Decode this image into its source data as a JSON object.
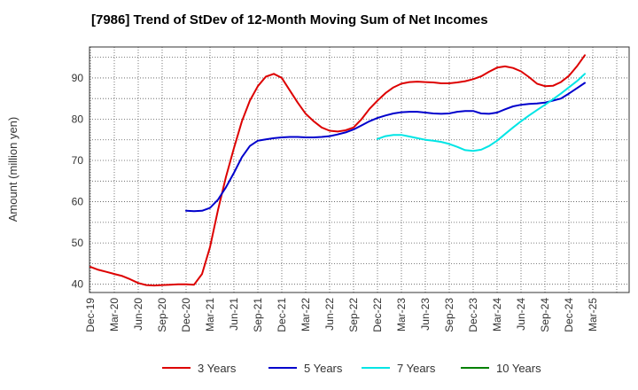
{
  "chart_data": {
    "type": "line",
    "title": "[7986]  Trend of StDev of 12-Month Moving Sum of Net Incomes",
    "xlabel": "",
    "ylabel": "Amount (million yen)",
    "ylim": [
      38,
      97.5
    ],
    "yticks": [
      40,
      50,
      60,
      70,
      80,
      90
    ],
    "grid": true,
    "legend_position": "bottom",
    "x_tick_labels": [
      "Dec-19",
      "Mar-20",
      "Jun-20",
      "Sep-20",
      "Dec-20",
      "Mar-21",
      "Jun-21",
      "Sep-21",
      "Dec-21",
      "Mar-22",
      "Jun-22",
      "Sep-22",
      "Dec-22",
      "Mar-23",
      "Jun-23",
      "Sep-23",
      "Dec-23",
      "Mar-24",
      "Jun-24",
      "Sep-24",
      "Dec-24",
      "Mar-25"
    ],
    "series": [
      {
        "name": "3 Years",
        "color": "#dd0000",
        "start_month": 0,
        "values": [
          44.2,
          43.5,
          43.0,
          42.5,
          42.0,
          41.2,
          40.3,
          39.8,
          39.7,
          39.8,
          39.9,
          40.0,
          40.0,
          39.9,
          42.5,
          49.0,
          58.0,
          66.0,
          73.0,
          79.5,
          84.5,
          88.0,
          90.3,
          91.0,
          90.0,
          87.0,
          84.0,
          81.3,
          79.5,
          78.0,
          77.2,
          77.0,
          77.3,
          78.0,
          80.0,
          82.5,
          84.5,
          86.3,
          87.7,
          88.6,
          89.0,
          89.1,
          89.0,
          88.9,
          88.7,
          88.7,
          88.9,
          89.2,
          89.7,
          90.4,
          91.5,
          92.5,
          92.8,
          92.4,
          91.6,
          90.2,
          88.6,
          88.0,
          88.1,
          89.0,
          90.5,
          92.8,
          95.5
        ]
      },
      {
        "name": "5 Years",
        "color": "#0000cc",
        "start_month": 12,
        "values": [
          57.8,
          57.7,
          57.8,
          58.5,
          60.5,
          63.5,
          67.0,
          70.8,
          73.5,
          74.8,
          75.1,
          75.4,
          75.6,
          75.7,
          75.7,
          75.6,
          75.6,
          75.7,
          75.9,
          76.3,
          76.8,
          77.5,
          78.5,
          79.5,
          80.3,
          80.9,
          81.4,
          81.7,
          81.8,
          81.8,
          81.6,
          81.4,
          81.3,
          81.4,
          81.8,
          82.0,
          82.0,
          81.4,
          81.3,
          81.6,
          82.4,
          83.1,
          83.5,
          83.7,
          83.8,
          84.0,
          84.5,
          85.0,
          86.2,
          87.5,
          88.8
        ]
      },
      {
        "name": "7 Years",
        "color": "#00e5e5",
        "start_month": 36,
        "values": [
          75.2,
          75.9,
          76.2,
          76.2,
          75.8,
          75.4,
          75.0,
          74.8,
          74.5,
          74.0,
          73.3,
          72.5,
          72.3,
          72.6,
          73.5,
          74.8,
          76.4,
          78.0,
          79.5,
          80.9,
          82.2,
          83.5,
          84.8,
          86.2,
          87.7,
          89.2,
          91.0
        ]
      },
      {
        "name": "10 Years",
        "color": "#008000",
        "start_month": 0,
        "values": []
      }
    ]
  }
}
